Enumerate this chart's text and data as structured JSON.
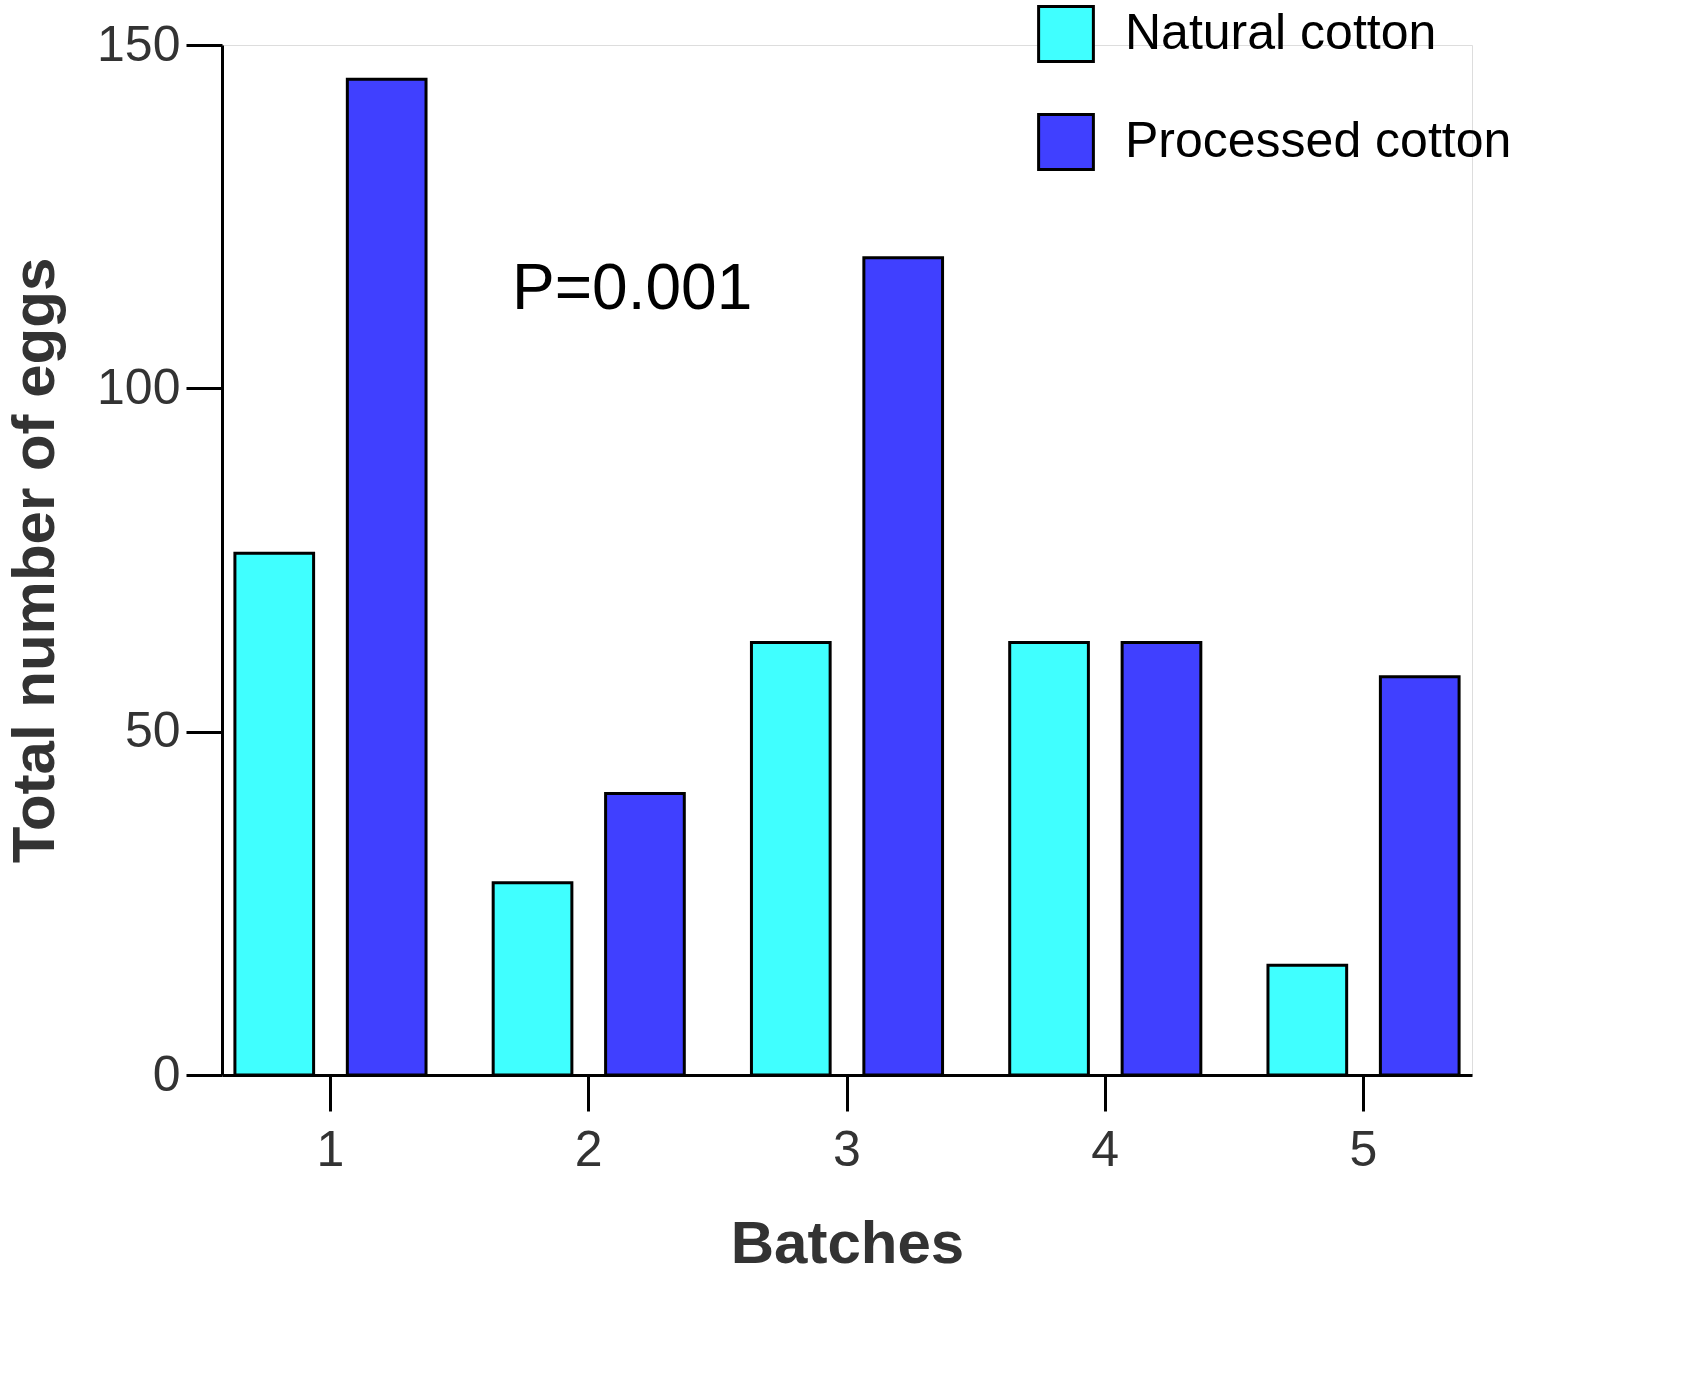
{
  "chart_data": {
    "type": "bar",
    "xlabel": "Batches",
    "ylabel": "Total number of eggs",
    "categories": [
      "1",
      "2",
      "3",
      "4",
      "5"
    ],
    "series": [
      {
        "name": "Natural cotton",
        "color": "#40ffff",
        "values": [
          76,
          28,
          63,
          63,
          16
        ]
      },
      {
        "name": "Processed cotton",
        "color": "#4040ff",
        "values": [
          145,
          41,
          119,
          63,
          58
        ]
      }
    ],
    "ylim": [
      0,
      150
    ],
    "yticks": [
      0,
      50,
      100,
      150
    ],
    "grid": false,
    "legend": "top right",
    "annotations": [
      "P=0.001"
    ]
  }
}
